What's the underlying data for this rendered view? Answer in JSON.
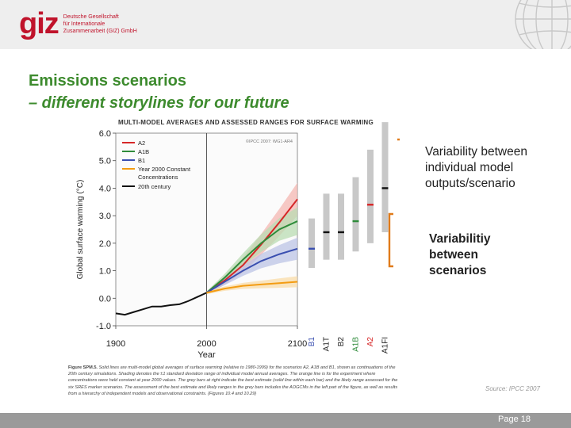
{
  "header": {
    "logo_mark": "giz",
    "logo_lines": [
      "Deutsche Gesellschaft",
      "für Internationale",
      "Zusammenarbeit (GIZ) GmbH"
    ]
  },
  "slide": {
    "title_line1": "Emissions scenarios",
    "title_line2": "– different storylines for our future",
    "annotation1": "Variability between individual model outputs/scenario",
    "annotation2": "Variabilitiy between scenarios",
    "source": "Source: IPCC 2007",
    "page": "Page 18"
  },
  "figure": {
    "title": "MULTI-MODEL AVERAGES AND ASSESSED RANGES FOR SURFACE WARMING",
    "copyright": "©IPCC 2007: WG1-AR4",
    "caption_lead": "Figure SPM.5.",
    "caption": "Solid lines are multi-model global averages of surface warming (relative to 1980-1999) for the scenarios A2, A1B and B1, shown as continuations of the 20th century simulations. Shading denotes the ±1 standard deviation range of individual model annual averages. The orange line is for the experiment where concentrations were held constant at year 2000 values. The grey bars at right indicate the best estimate (solid line within each bar) and the likely range assessed for the six SRES marker scenarios. The assessment of the best estimate and likely ranges in the grey bars includes the AOGCMs in the left part of the figure, as well as results from a hierarchy of independent models and observational constraints. {Figures 10.4 and 10.29}"
  },
  "chart_data": {
    "type": "line",
    "xlabel": "Year",
    "ylabel": "Global surface warming (°C)",
    "xlim": [
      1900,
      2100
    ],
    "ylim": [
      -1.0,
      6.0
    ],
    "x_ticks": [
      "1900",
      "2000",
      "2100"
    ],
    "y_ticks": [
      "-1.0",
      "0.0",
      "1.0",
      "2.0",
      "3.0",
      "4.0",
      "5.0",
      "6.0"
    ],
    "legend_position": "top-left",
    "legend": [
      "A2",
      "A1B",
      "B1",
      "Year 2000 Constant Concentrations",
      "20th century"
    ],
    "series": [
      {
        "name": "20th century",
        "color": "#111111",
        "x": [
          1900,
          1910,
          1920,
          1930,
          1940,
          1950,
          1960,
          1970,
          1980,
          1990,
          2000
        ],
        "y": [
          -0.55,
          -0.6,
          -0.5,
          -0.4,
          -0.3,
          -0.3,
          -0.25,
          -0.22,
          -0.1,
          0.05,
          0.2
        ]
      },
      {
        "name": "A2",
        "color": "#d62728",
        "x": [
          2000,
          2020,
          2040,
          2060,
          2080,
          2100
        ],
        "y": [
          0.2,
          0.65,
          1.2,
          1.95,
          2.75,
          3.6
        ]
      },
      {
        "name": "A1B",
        "color": "#2e8b3a",
        "x": [
          2000,
          2020,
          2040,
          2060,
          2080,
          2100
        ],
        "y": [
          0.2,
          0.75,
          1.4,
          2.0,
          2.5,
          2.8
        ]
      },
      {
        "name": "B1",
        "color": "#3a4fb0",
        "x": [
          2000,
          2020,
          2040,
          2060,
          2080,
          2100
        ],
        "y": [
          0.2,
          0.6,
          1.0,
          1.35,
          1.6,
          1.8
        ]
      },
      {
        "name": "Year 2000 Constant Concentrations",
        "color": "#f39c12",
        "x": [
          2000,
          2020,
          2040,
          2060,
          2080,
          2100
        ],
        "y": [
          0.2,
          0.35,
          0.45,
          0.5,
          0.55,
          0.6
        ]
      }
    ],
    "ranges": [
      {
        "name": "B1",
        "color": "#3a4fb0",
        "low": 1.1,
        "best": 1.8,
        "high": 2.9
      },
      {
        "name": "A1T",
        "color": "#111111",
        "low": 1.4,
        "best": 2.4,
        "high": 3.8
      },
      {
        "name": "B2",
        "color": "#111111",
        "low": 1.4,
        "best": 2.4,
        "high": 3.8
      },
      {
        "name": "A1B",
        "color": "#2e8b3a",
        "low": 1.7,
        "best": 2.8,
        "high": 4.4
      },
      {
        "name": "A2",
        "color": "#d62728",
        "low": 2.0,
        "best": 3.4,
        "high": 5.4
      },
      {
        "name": "A1FI",
        "color": "#111111",
        "low": 2.4,
        "best": 4.0,
        "high": 6.4
      }
    ]
  }
}
